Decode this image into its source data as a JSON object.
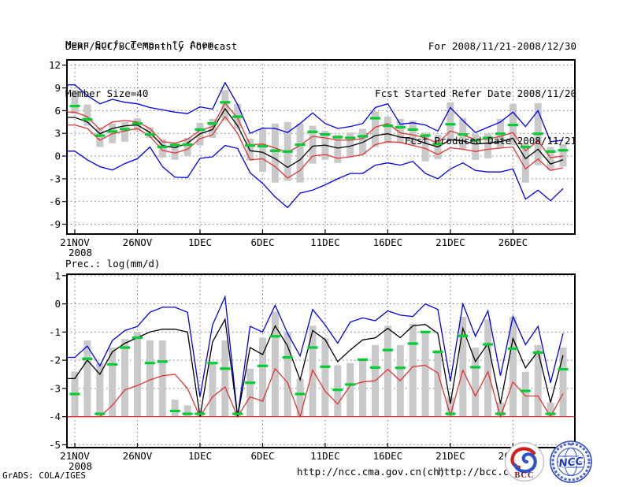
{
  "header": {
    "line1": "DERF/NCC/BCC Monthly Forecast",
    "line2": "Member Size=40",
    "right1": "For 2008/11/21-2008/12/30",
    "right2": "Fcst Started Refer Date 2008/11/20",
    "right3": "Fcst Produced Date 2008/11/21"
  },
  "footer": {
    "credit": "GrADS: COLA/IGES",
    "url_ncc": "http://ncc.cma.gov.cn(ch)",
    "url_bcc": "http://bcc.c"
  },
  "logos": {
    "bcc_text": "BCC",
    "ncc_text": "NCC"
  },
  "colors": {
    "max_min_line": "#0000e8",
    "quartile_line": "#e03434",
    "mean_line": "#000000",
    "obs_dash": "#00cc33",
    "spread_bar": "#c9c9c9",
    "grid": "#777777",
    "frame": "#000000"
  },
  "chart_data": [
    {
      "type": "line",
      "title": "Mean Surf. Temp.: °C Anom.",
      "n_days": 40,
      "x_start": "2008/11/21",
      "x_ticks": [
        {
          "day": 0,
          "label": "21NOV",
          "sub": "2008"
        },
        {
          "day": 5,
          "label": "26NOV"
        },
        {
          "day": 10,
          "label": "1DEC"
        },
        {
          "day": 15,
          "label": "6DEC"
        },
        {
          "day": 20,
          "label": "11DEC"
        },
        {
          "day": 25,
          "label": "16DEC"
        },
        {
          "day": 30,
          "label": "21DEC"
        },
        {
          "day": 35,
          "label": "26DEC"
        }
      ],
      "y_ticks": [
        12,
        9,
        6,
        3,
        0,
        -3,
        -6,
        -9
      ],
      "ylim": [
        -10.3,
        12.7
      ],
      "series": [
        {
          "name": "ens-min",
          "color": "#0000e8",
          "values": [
            0.65,
            -0.5,
            -1.4,
            -1.85,
            -1.0,
            -0.35,
            1.2,
            -1.4,
            -2.8,
            -2.85,
            -0.3,
            -0.1,
            1.4,
            1.0,
            -2.2,
            -3.6,
            -5.4,
            -6.8,
            -4.9,
            -4.5,
            -3.8,
            -3.0,
            -2.3,
            -2.3,
            -1.2,
            -0.9,
            -1.2,
            -0.7,
            -2.3,
            -3.0,
            -1.7,
            -0.9,
            -1.9,
            -2.1,
            -2.1,
            -1.7,
            -5.7,
            -4.5,
            -5.9,
            -4.3
          ]
        },
        {
          "name": "ens-max",
          "color": "#0000e8",
          "values": [
            9.4,
            8.0,
            6.9,
            7.5,
            7.1,
            6.9,
            6.4,
            6.1,
            5.8,
            5.6,
            6.5,
            6.2,
            9.7,
            6.8,
            3.0,
            3.7,
            3.65,
            3.1,
            4.3,
            5.7,
            4.3,
            3.65,
            3.9,
            4.3,
            6.4,
            6.9,
            4.2,
            4.4,
            4.1,
            3.3,
            6.4,
            4.7,
            3.1,
            3.8,
            4.5,
            5.8,
            3.9,
            6.0,
            1.9,
            2.1
          ]
        },
        {
          "name": "lower-quartile",
          "color": "#e03434",
          "values": [
            4.1,
            3.65,
            2.1,
            2.95,
            3.3,
            3.65,
            2.6,
            0.75,
            0.4,
            0.9,
            2.3,
            2.8,
            5.2,
            3.0,
            -0.5,
            -0.35,
            -1.4,
            -2.9,
            -1.9,
            0.0,
            0.2,
            -0.3,
            -0.1,
            0.2,
            1.5,
            1.9,
            1.8,
            1.4,
            1.0,
            0.2,
            1.1,
            0.9,
            0.6,
            0.9,
            1.05,
            1.2,
            -1.7,
            -0.4,
            -1.9,
            -1.55
          ]
        },
        {
          "name": "upper-quartile",
          "color": "#e03434",
          "values": [
            5.8,
            5.2,
            3.5,
            4.5,
            4.7,
            4.5,
            3.65,
            1.9,
            1.7,
            2.2,
            3.4,
            3.9,
            7.0,
            5.0,
            1.5,
            1.6,
            1.05,
            0.5,
            1.4,
            2.6,
            2.4,
            2.1,
            2.1,
            2.3,
            3.8,
            4.3,
            3.05,
            2.8,
            2.4,
            1.7,
            3.3,
            2.8,
            2.15,
            2.25,
            2.6,
            3.1,
            0.7,
            2.0,
            -0.2,
            0.0
          ]
        },
        {
          "name": "ens-mean",
          "color": "#000000",
          "values": [
            5.1,
            4.5,
            2.95,
            3.65,
            4.0,
            4.1,
            3.1,
            1.4,
            1.1,
            1.7,
            2.95,
            3.5,
            6.25,
            4.0,
            0.7,
            0.5,
            -0.35,
            -1.5,
            -0.5,
            1.3,
            1.45,
            1.05,
            1.3,
            1.8,
            2.7,
            2.95,
            2.5,
            2.3,
            1.7,
            1.2,
            2.15,
            2.0,
            1.6,
            1.7,
            1.9,
            2.35,
            -0.35,
            0.9,
            -1.05,
            -0.5
          ]
        }
      ],
      "obs_dashes": {
        "name": "obs-green-dash",
        "color": "#00cc33",
        "values": [
          6.6,
          4.85,
          2.7,
          3.25,
          3.55,
          4.3,
          2.85,
          1.2,
          1.45,
          1.5,
          3.5,
          4.3,
          7.1,
          5.2,
          1.4,
          1.3,
          0.7,
          0.6,
          1.5,
          3.2,
          2.85,
          2.5,
          2.4,
          2.6,
          5.0,
          4.0,
          3.8,
          3.5,
          2.7,
          1.6,
          4.2,
          2.85,
          2.1,
          2.4,
          2.95,
          4.1,
          1.2,
          2.95,
          0.6,
          0.76
        ]
      },
      "bars": {
        "name": "spread-bar",
        "color": "#c9c9c9",
        "top": [
          8.75,
          6.8,
          3.8,
          4.3,
          4.5,
          5.0,
          3.8,
          2.25,
          1.7,
          2.4,
          4.4,
          4.9,
          8.7,
          6.9,
          2.3,
          3.6,
          4.3,
          4.5,
          4.3,
          4.0,
          3.3,
          2.8,
          3.1,
          3.6,
          5.9,
          5.2,
          4.9,
          4.7,
          3.1,
          2.8,
          7.1,
          5.0,
          2.9,
          3.0,
          4.9,
          6.9,
          1.7,
          7.0,
          1.2,
          1.55
        ],
        "bottom": [
          5.55,
          4.0,
          1.2,
          1.7,
          1.9,
          3.3,
          2.4,
          -0.2,
          -0.5,
          0.0,
          1.4,
          2.4,
          4.7,
          3.6,
          -0.6,
          -2.1,
          -3.5,
          -3.3,
          -3.5,
          -1.0,
          -0.5,
          -0.9,
          -0.2,
          0.2,
          1.2,
          1.7,
          1.7,
          1.4,
          -0.7,
          -0.4,
          2.1,
          0.9,
          -0.5,
          -0.3,
          1.05,
          1.4,
          -3.5,
          -1.2,
          -1.9,
          -1.4
        ]
      }
    },
    {
      "type": "line",
      "title": "Prec.: log(mm/d)",
      "n_days": 40,
      "x_start": "2008/11/21",
      "x_ticks": [
        {
          "day": 0,
          "label": "21NOV",
          "sub": "2008"
        },
        {
          "day": 5,
          "label": "26NOV"
        },
        {
          "day": 10,
          "label": "1DEC"
        },
        {
          "day": 15,
          "label": "6DEC"
        },
        {
          "day": 20,
          "label": "11DEC"
        },
        {
          "day": 25,
          "label": "16DEC"
        },
        {
          "day": 30,
          "label": "21DEC"
        },
        {
          "day": 35,
          "label": "26DEC"
        }
      ],
      "y_ticks": [
        1,
        0,
        -1,
        -2,
        -3,
        -4,
        -5
      ],
      "ylim": [
        -5.1,
        1.05
      ],
      "floor_line": {
        "value": -4,
        "color": "#e03434"
      },
      "series": [
        {
          "name": "ens-max",
          "color": "#0000e8",
          "values": [
            -1.9,
            -1.5,
            -2.2,
            -1.3,
            -0.95,
            -0.8,
            -0.3,
            -0.12,
            -0.12,
            -0.3,
            -3.3,
            -0.75,
            0.25,
            -4.0,
            -0.8,
            -1.0,
            -0.05,
            -1.05,
            -1.85,
            -0.2,
            -0.75,
            -1.4,
            -0.65,
            -0.5,
            -0.6,
            -0.25,
            -0.4,
            -0.45,
            0.0,
            -0.2,
            -2.75,
            0.0,
            -1.15,
            -0.25,
            -2.55,
            -0.45,
            -1.45,
            -0.8,
            -2.8,
            -1.05
          ]
        },
        {
          "name": "lower-quartile",
          "color": "#e03434",
          "values": [
            -4.0,
            -4.0,
            -4.0,
            -3.6,
            -3.05,
            -2.9,
            -2.7,
            -2.55,
            -2.5,
            -3.0,
            -4.0,
            -3.3,
            -2.95,
            -4.0,
            -3.3,
            -3.45,
            -2.3,
            -2.8,
            -4.0,
            -2.35,
            -3.1,
            -3.55,
            -2.9,
            -2.77,
            -2.73,
            -2.32,
            -2.73,
            -2.23,
            -2.18,
            -2.45,
            -3.95,
            -2.36,
            -3.27,
            -2.41,
            -4.0,
            -2.77,
            -3.27,
            -3.27,
            -4.0,
            -3.18
          ]
        },
        {
          "name": "ens-mean",
          "color": "#000000",
          "values": [
            -2.65,
            -2.0,
            -2.5,
            -1.7,
            -1.4,
            -1.2,
            -1.0,
            -0.9,
            -0.9,
            -1.0,
            -4.0,
            -1.35,
            -0.55,
            -4.0,
            -1.55,
            -1.8,
            -0.78,
            -1.5,
            -2.7,
            -0.95,
            -1.27,
            -2.05,
            -1.64,
            -1.28,
            -1.21,
            -0.87,
            -1.2,
            -0.78,
            -0.73,
            -1.05,
            -3.54,
            -0.87,
            -2.05,
            -1.41,
            -3.54,
            -1.23,
            -2.27,
            -1.68,
            -3.5,
            -1.82
          ]
        }
      ],
      "obs_dashes": {
        "name": "obs-green-dash",
        "color": "#00cc33",
        "values": [
          -3.2,
          -1.95,
          -3.9,
          -2.15,
          -1.55,
          -1.2,
          -2.1,
          -2.05,
          -3.8,
          -3.9,
          -3.9,
          -2.1,
          -2.3,
          -3.9,
          -2.8,
          -2.2,
          -1.15,
          -1.9,
          -3.2,
          -1.55,
          -2.23,
          -3.05,
          -2.86,
          -1.98,
          -2.26,
          -1.64,
          -2.27,
          -1.41,
          -1.0,
          -1.71,
          -3.9,
          -1.14,
          -2.25,
          -1.44,
          -3.9,
          -1.59,
          -3.09,
          -1.73,
          -3.9,
          -2.32
        ]
      },
      "bars": {
        "name": "spread-bar",
        "color": "#c9c9c9",
        "bottom_fixed": -4,
        "top": [
          -2.4,
          -1.3,
          -2.1,
          -1.55,
          -1.25,
          -1.0,
          -1.3,
          -1.3,
          -3.4,
          -3.6,
          -3.8,
          -2.1,
          -1.3,
          -3.8,
          -2.3,
          -1.2,
          -0.28,
          -1.0,
          -2.65,
          -0.78,
          -1.23,
          -2.18,
          -2.1,
          -1.96,
          -1.46,
          -0.78,
          -1.46,
          -0.7,
          -1.0,
          -1.64,
          -3.3,
          -0.46,
          -1.55,
          -0.55,
          -3.5,
          -0.46,
          -2.41,
          -1.46,
          -3.5,
          -1.55
        ]
      }
    }
  ]
}
